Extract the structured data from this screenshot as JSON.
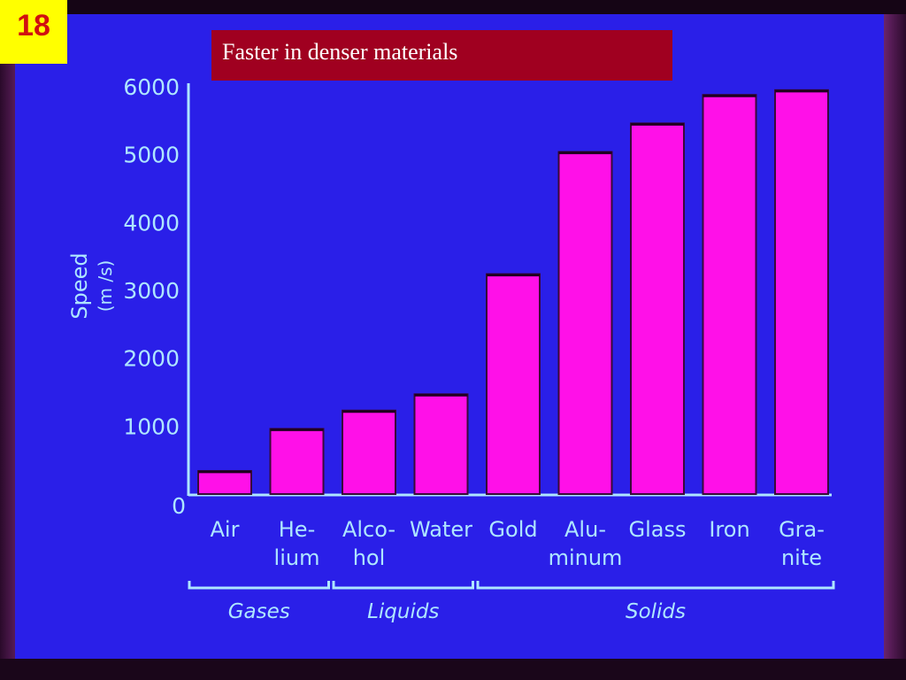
{
  "slide": {
    "number": "18"
  },
  "chart_data": {
    "type": "bar",
    "title": "Faster in denser materials",
    "ylabel": "Speed",
    "ylabel_unit": "(m /s)",
    "categories": [
      [
        "Air"
      ],
      [
        "He-",
        "lium"
      ],
      [
        "Alco-",
        "hol"
      ],
      [
        "Water"
      ],
      [
        "Gold"
      ],
      [
        "Alu-",
        "minum"
      ],
      [
        "Glass"
      ],
      [
        "Iron"
      ],
      [
        "Gra-",
        "nite"
      ]
    ],
    "values": [
      340,
      960,
      1230,
      1470,
      3240,
      5040,
      5460,
      5880,
      5950
    ],
    "ylim": [
      0,
      6000
    ],
    "yticks": [
      0,
      1000,
      2000,
      3000,
      4000,
      5000,
      6000
    ],
    "groups": [
      {
        "label": "Gases",
        "from": 0,
        "to": 1
      },
      {
        "label": "Liquids",
        "from": 2,
        "to": 3
      },
      {
        "label": "Solids",
        "from": 4,
        "to": 8
      }
    ],
    "colors": {
      "bar": "#ff10e8",
      "axis": "#aee6ff",
      "background": "#2a1fe8"
    },
    "grid": false
  }
}
